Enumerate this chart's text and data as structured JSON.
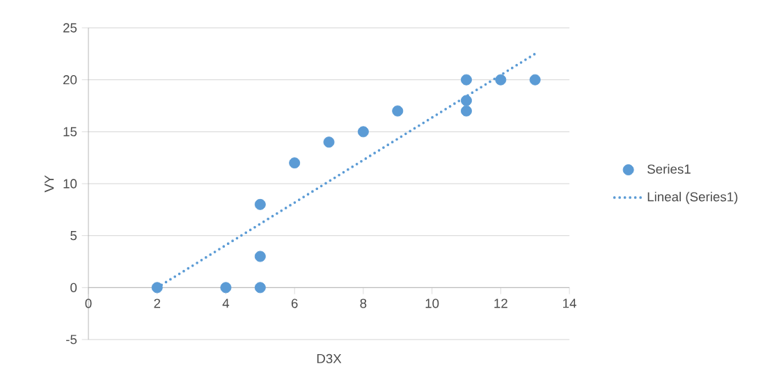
{
  "chart_data": {
    "type": "scatter",
    "xlabel": "D3X",
    "ylabel": "VY",
    "xlim": [
      0,
      14
    ],
    "xticks": [
      0,
      2,
      4,
      6,
      8,
      10,
      12,
      14
    ],
    "ylim": [
      -5,
      25
    ],
    "yticks": [
      -5,
      0,
      5,
      10,
      15,
      20,
      25
    ],
    "grid": "y",
    "legend": "right",
    "marker": "circle",
    "series": [
      {
        "name": "Series1",
        "type": "scatter",
        "color": "#5b9bd5",
        "x": [
          2,
          4,
          5,
          5,
          5,
          6,
          7,
          8,
          9,
          11,
          11,
          11,
          12,
          13
        ],
        "values": [
          0,
          0,
          0,
          3,
          8,
          12,
          14,
          15,
          17,
          20,
          18,
          17,
          20,
          20
        ]
      },
      {
        "name": "Lineal (Series1)",
        "type": "line",
        "marker": "none",
        "line_style": "dotted",
        "color": "#5b9bd5",
        "x": [
          2,
          13
        ],
        "values": [
          0,
          22.5
        ]
      }
    ]
  }
}
